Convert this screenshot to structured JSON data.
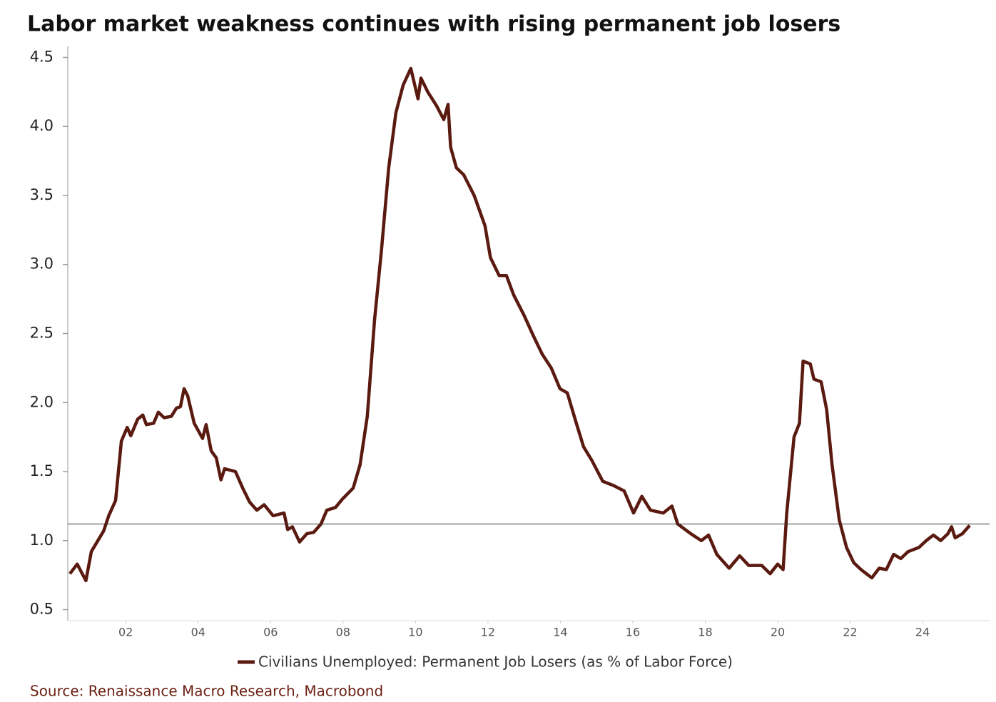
{
  "chart_data": {
    "type": "line",
    "title": "Labor market weakness continues with rising permanent job losers",
    "source": "Source: Renaissance Macro Research, Macrobond",
    "x": [
      0.46,
      0.66,
      0.9,
      1.05,
      1.39,
      1.53,
      1.72,
      1.88,
      2.04,
      2.14,
      2.33,
      2.47,
      2.57,
      2.77,
      2.9,
      3.06,
      3.26,
      3.4,
      3.51,
      3.61,
      3.71,
      3.89,
      4.12,
      4.22,
      4.36,
      4.5,
      4.63,
      4.73,
      5.03,
      5.23,
      5.42,
      5.62,
      5.82,
      6.07,
      6.37,
      6.47,
      6.6,
      6.8,
      7.0,
      7.19,
      7.39,
      7.55,
      7.79,
      7.98,
      8.28,
      8.47,
      8.67,
      8.87,
      9.06,
      9.26,
      9.46,
      9.66,
      9.87,
      10.07,
      10.15,
      10.34,
      10.58,
      10.78,
      10.9,
      10.97,
      11.13,
      11.33,
      11.62,
      11.92,
      12.07,
      12.31,
      12.51,
      12.71,
      13.0,
      13.26,
      13.5,
      13.75,
      13.99,
      14.19,
      14.44,
      14.64,
      14.87,
      15.17,
      15.46,
      15.76,
      16.02,
      16.25,
      16.49,
      16.84,
      17.08,
      17.24,
      17.6,
      17.89,
      18.09,
      18.32,
      18.66,
      18.95,
      19.2,
      19.56,
      19.79,
      20.0,
      20.15,
      20.25,
      20.45,
      20.6,
      20.7,
      20.9,
      21.0,
      21.2,
      21.35,
      21.5,
      21.7,
      21.9,
      22.1,
      22.3,
      22.6,
      22.8,
      23.0,
      23.2,
      23.4,
      23.6,
      23.9,
      24.1,
      24.3,
      24.5,
      24.7,
      24.8,
      24.9,
      25.1,
      25.3
    ],
    "series": [
      {
        "name": "Civilians Unemployed: Permanent Job Losers (as % of Labor Force)",
        "color": "#5a1a10",
        "values": [
          0.76,
          0.83,
          0.71,
          0.92,
          1.07,
          1.18,
          1.29,
          1.72,
          1.82,
          1.76,
          1.88,
          1.91,
          1.84,
          1.85,
          1.93,
          1.89,
          1.9,
          1.96,
          1.97,
          2.1,
          2.05,
          1.85,
          1.74,
          1.84,
          1.65,
          1.6,
          1.44,
          1.52,
          1.5,
          1.38,
          1.28,
          1.22,
          1.26,
          1.18,
          1.2,
          1.08,
          1.1,
          0.99,
          1.05,
          1.06,
          1.12,
          1.22,
          1.24,
          1.3,
          1.38,
          1.55,
          1.9,
          2.6,
          3.1,
          3.7,
          4.1,
          4.3,
          4.42,
          4.2,
          4.35,
          4.25,
          4.15,
          4.05,
          4.16,
          3.85,
          3.7,
          3.65,
          3.5,
          3.28,
          3.05,
          2.92,
          2.92,
          2.78,
          2.63,
          2.48,
          2.35,
          2.25,
          2.1,
          2.07,
          1.85,
          1.68,
          1.58,
          1.43,
          1.4,
          1.36,
          1.2,
          1.32,
          1.22,
          1.2,
          1.25,
          1.12,
          1.05,
          1.0,
          1.04,
          0.9,
          0.8,
          0.89,
          0.82,
          0.82,
          0.76,
          0.83,
          0.79,
          1.2,
          1.75,
          1.85,
          2.3,
          2.28,
          2.17,
          2.15,
          1.95,
          1.55,
          1.15,
          0.95,
          0.84,
          0.79,
          0.73,
          0.8,
          0.79,
          0.9,
          0.87,
          0.92,
          0.95,
          1.0,
          1.04,
          1.0,
          1.05,
          1.1,
          1.02,
          1.05,
          1.11
        ]
      }
    ],
    "xlim": [
      0.4,
      25.85
    ],
    "xticks": [
      {
        "value": 2,
        "label": "02"
      },
      {
        "value": 4,
        "label": "04"
      },
      {
        "value": 6,
        "label": "06"
      },
      {
        "value": 8,
        "label": "08"
      },
      10,
      12,
      14,
      16,
      18,
      20,
      22,
      24
    ],
    "ylim": [
      0.42,
      4.58
    ],
    "yticks": [
      0.5,
      {
        "value": 1,
        "label": "1.0"
      },
      1.5,
      {
        "value": 2,
        "label": "2.0"
      },
      2.5,
      {
        "value": 3,
        "label": "3.0"
      },
      3.5,
      {
        "value": 4,
        "label": "4.0"
      },
      4.5
    ],
    "hline": 1.12
  }
}
